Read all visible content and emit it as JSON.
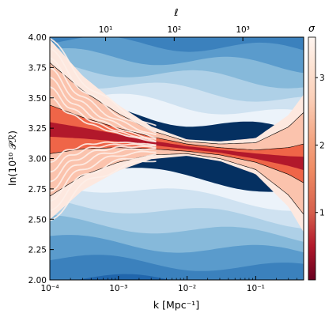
{
  "chart_data": {
    "type": "heatmap",
    "title": "",
    "xlabel": "k    [Mpc⁻¹]",
    "ylabel": "ln(10¹⁰ 𝒫ℛ)",
    "top_xlabel": "ℓ",
    "colorbar_label": "σ",
    "x_scale": "log",
    "xlim": [
      0.0001,
      0.5
    ],
    "ylim": [
      2.0,
      4.0
    ],
    "x_ticks": [
      {
        "value": 0.0001,
        "label": "10⁻⁴"
      },
      {
        "value": 0.001,
        "label": "10⁻³"
      },
      {
        "value": 0.01,
        "label": "10⁻²"
      },
      {
        "value": 0.1,
        "label": "10⁻¹"
      }
    ],
    "y_ticks": [
      {
        "value": 2.0,
        "label": "2.00"
      },
      {
        "value": 2.25,
        "label": "2.25"
      },
      {
        "value": 2.5,
        "label": "2.50"
      },
      {
        "value": 2.75,
        "label": "2.75"
      },
      {
        "value": 3.0,
        "label": "3.00"
      },
      {
        "value": 3.25,
        "label": "3.25"
      },
      {
        "value": 3.5,
        "label": "3.50"
      },
      {
        "value": 3.75,
        "label": "3.75"
      },
      {
        "value": 4.0,
        "label": "4.00"
      }
    ],
    "top_ticks": [
      {
        "label": "10¹",
        "k": 0.00065
      },
      {
        "label": "10²",
        "k": 0.0065
      },
      {
        "label": "10³",
        "k": 0.065
      }
    ],
    "colorbar": {
      "range": [
        0,
        3.6
      ],
      "ticks": [
        {
          "value": 1,
          "label": "1"
        },
        {
          "value": 2,
          "label": "2"
        },
        {
          "value": 3,
          "label": "3"
        }
      ]
    },
    "central_curve": {
      "k": [
        0.0001,
        0.0003,
        0.001,
        0.003,
        0.01,
        0.03,
        0.1,
        0.3,
        0.5
      ],
      "ln_As": [
        3.24,
        3.21,
        3.17,
        3.13,
        3.09,
        3.06,
        3.02,
        2.98,
        2.96
      ]
    },
    "sigma_halfwidth": {
      "k": [
        0.0001,
        0.0003,
        0.001,
        0.003,
        0.01,
        0.03,
        0.1,
        0.3,
        0.5
      ],
      "one_sigma": [
        0.06,
        0.045,
        0.03,
        0.018,
        0.012,
        0.012,
        0.022,
        0.04,
        0.055
      ],
      "two_sigma": [
        0.2,
        0.13,
        0.08,
        0.05,
        0.03,
        0.03,
        0.05,
        0.11,
        0.16
      ],
      "three_sigma": [
        0.55,
        0.35,
        0.2,
        0.1,
        0.05,
        0.06,
        0.11,
        0.28,
        0.42
      ]
    },
    "background_levels": [
      "#053061",
      "#0c4a8a",
      "#2166ac",
      "#3b81bd",
      "#5a9bcc",
      "#86b9da",
      "#aed0e7",
      "#cfe2f1",
      "#ecf3fa"
    ],
    "colors": {
      "band_1sigma": "#b2182b",
      "band_2sigma": "#ef6548",
      "band_3sigma": "#fbc3ad",
      "band_outer": "#fde8df",
      "curves": "#fdeee8"
    }
  }
}
